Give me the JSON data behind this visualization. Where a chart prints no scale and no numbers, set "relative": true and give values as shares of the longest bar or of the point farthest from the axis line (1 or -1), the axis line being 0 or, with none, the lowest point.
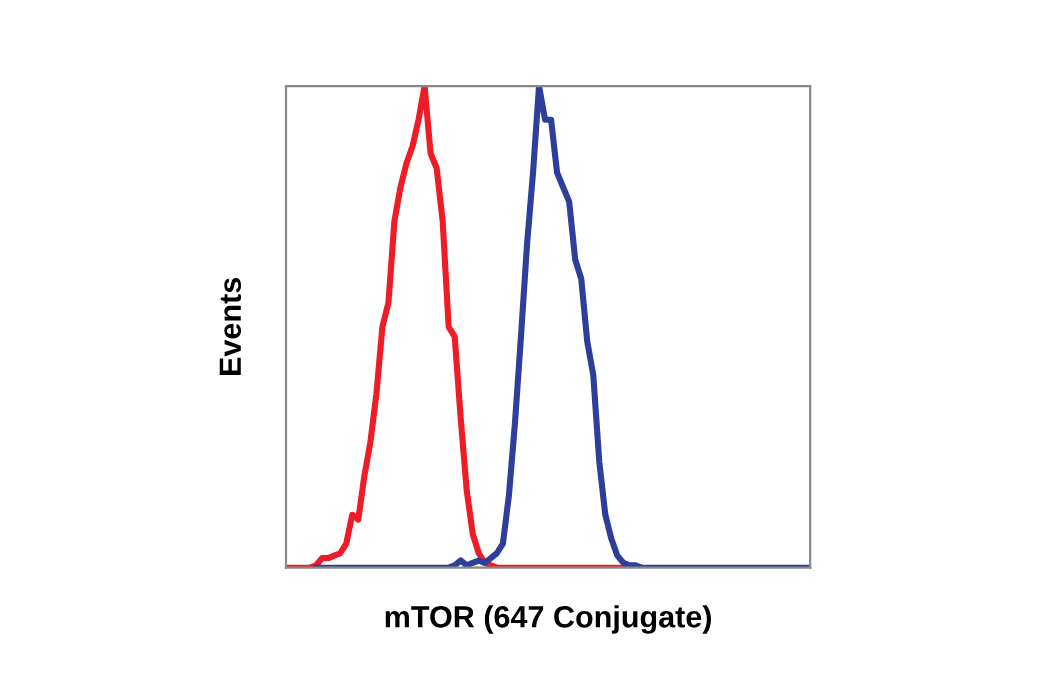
{
  "chart_data": {
    "type": "line",
    "xlabel": "mTOR (647 Conjugate)",
    "ylabel": "Events",
    "relative": true,
    "categories": [
      null,
      null,
      null,
      null,
      null,
      null,
      null,
      null,
      null,
      null,
      null,
      null,
      null,
      null,
      null,
      null,
      null,
      null,
      null,
      null,
      null,
      null,
      null,
      null,
      null,
      null,
      null,
      null,
      null,
      null,
      null,
      null,
      null,
      null,
      null,
      null,
      null,
      null,
      null,
      null,
      null,
      null,
      null,
      null,
      null,
      null,
      null,
      null,
      null,
      null,
      null,
      null,
      null,
      null,
      null,
      null,
      null,
      null,
      null,
      null,
      null,
      null,
      null,
      null,
      null,
      null,
      null,
      null,
      null,
      null,
      null,
      null,
      null,
      null,
      null,
      null,
      null,
      null,
      null,
      null,
      null,
      null,
      null,
      null,
      null,
      null,
      null,
      null
    ],
    "series": [
      {
        "color": "#ee1c25",
        "values": [
          0,
          0,
          0,
          0,
          0,
          0.005,
          0.02,
          0.02,
          0.025,
          0.03,
          0.05,
          0.11,
          0.1,
          0.19,
          0.26,
          0.36,
          0.5,
          0.55,
          0.72,
          0.79,
          0.84,
          0.875,
          0.93,
          1.0,
          0.86,
          0.83,
          0.72,
          0.5,
          0.48,
          0.31,
          0.16,
          0.07,
          0.03,
          0.01,
          0.005,
          0,
          0,
          0,
          0,
          0,
          0,
          0,
          0,
          0,
          0,
          0,
          0,
          0,
          0,
          0,
          0,
          0,
          0,
          0,
          0,
          0,
          0,
          0,
          0,
          null,
          null,
          null,
          null,
          null,
          null,
          null,
          null,
          null,
          null,
          null,
          null,
          null,
          null,
          null,
          null,
          null,
          null,
          null,
          null,
          null,
          null,
          null,
          null,
          null,
          null,
          null,
          null,
          null
        ]
      },
      {
        "color": "#2e3f9b",
        "values": [
          null,
          null,
          null,
          null,
          null,
          0,
          0,
          0,
          0,
          0,
          0,
          0,
          0,
          0,
          0,
          0,
          0,
          0,
          0,
          0,
          0,
          0,
          0,
          0,
          0,
          0,
          0,
          0,
          0.005,
          0.015,
          0.005,
          0.01,
          0.015,
          0.01,
          0.02,
          0.03,
          0.05,
          0.15,
          0.3,
          0.48,
          0.67,
          0.82,
          1.0,
          0.93,
          0.93,
          0.82,
          0.79,
          0.76,
          0.64,
          0.6,
          0.47,
          0.4,
          0.22,
          0.11,
          0.06,
          0.025,
          0.01,
          0.005,
          0.005,
          0,
          0,
          0,
          0,
          0,
          0,
          0,
          0,
          0,
          0,
          0,
          0,
          0,
          0,
          0,
          0,
          0,
          0,
          0,
          0,
          0,
          0,
          0,
          0,
          0,
          0,
          0,
          0,
          0
        ]
      }
    ]
  }
}
